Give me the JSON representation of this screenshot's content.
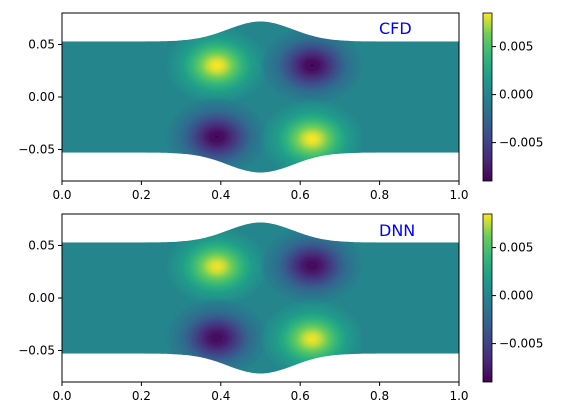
{
  "chart_data": [
    {
      "type": "heatmap",
      "label": "CFD",
      "xlim": [
        0.0,
        1.0
      ],
      "ylim": [
        -0.08,
        0.08
      ],
      "xticks": [
        "0.0",
        "0.2",
        "0.4",
        "0.6",
        "0.8",
        "1.0"
      ],
      "yticks": [
        "0.05",
        "0.00",
        "−0.05"
      ],
      "channel_half_width": 0.053,
      "bump_max_half_width": 0.072,
      "bump_center_x": 0.5,
      "blobs": [
        {
          "x": 0.39,
          "y": 0.03,
          "value": 0.0085
        },
        {
          "x": 0.63,
          "y": 0.03,
          "value": -0.0088
        },
        {
          "x": 0.39,
          "y": -0.038,
          "value": -0.0088
        },
        {
          "x": 0.63,
          "y": -0.04,
          "value": 0.0085
        }
      ],
      "colorbar": {
        "min": -0.009,
        "max": 0.0085,
        "ticks": [
          "0.005",
          "0.000",
          "−0.005"
        ],
        "colormap": "viridis"
      }
    },
    {
      "type": "heatmap",
      "label": "DNN",
      "xlim": [
        0.0,
        1.0
      ],
      "ylim": [
        -0.08,
        0.08
      ],
      "xticks": [
        "0.0",
        "0.2",
        "0.4",
        "0.6",
        "0.8",
        "1.0"
      ],
      "yticks": [
        "0.05",
        "0.00",
        "−0.05"
      ],
      "channel_half_width": 0.053,
      "bump_max_half_width": 0.072,
      "bump_center_x": 0.5,
      "blobs": [
        {
          "x": 0.39,
          "y": 0.03,
          "value": 0.0083
        },
        {
          "x": 0.63,
          "y": 0.031,
          "value": -0.0086
        },
        {
          "x": 0.39,
          "y": -0.038,
          "value": -0.0086
        },
        {
          "x": 0.63,
          "y": -0.039,
          "value": 0.0083
        }
      ],
      "colorbar": {
        "min": -0.009,
        "max": 0.0085,
        "ticks": [
          "0.005",
          "0.000",
          "−0.005"
        ],
        "colormap": "viridis"
      }
    }
  ],
  "colors": {
    "label_color": "#0000ff",
    "axis_color": "#000000",
    "background": "#ffffff"
  }
}
